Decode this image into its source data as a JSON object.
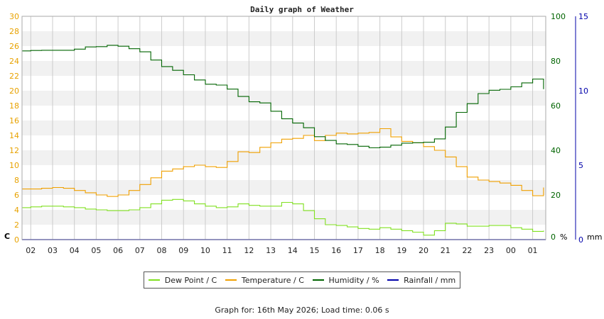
{
  "chart_data": {
    "type": "line",
    "title": "Daily graph of Weather",
    "x_ticks": [
      "02",
      "03",
      "04",
      "05",
      "06",
      "07",
      "08",
      "09",
      "10",
      "11",
      "12",
      "13",
      "14",
      "15",
      "16",
      "17",
      "18",
      "19",
      "20",
      "21",
      "22",
      "23",
      "00",
      "01"
    ],
    "x_range": [
      1.6,
      25.6
    ],
    "left_axis": {
      "ticks": [
        0,
        2,
        4,
        6,
        8,
        10,
        12,
        14,
        16,
        18,
        20,
        22,
        24,
        26,
        28,
        30
      ],
      "range": [
        0,
        30
      ],
      "color": "#e8a200",
      "unit": "C"
    },
    "right_axis_humidity": {
      "ticks": [
        0,
        20,
        40,
        60,
        80,
        100
      ],
      "range": [
        0,
        100
      ],
      "color": "#006400",
      "unit": "%"
    },
    "right_axis_rain": {
      "ticks": [
        0,
        5,
        10,
        15
      ],
      "range": [
        0,
        15
      ],
      "color": "#0000aa",
      "unit": "mm"
    },
    "grid": true,
    "legend_position": "bottom",
    "series": [
      {
        "name": "Dew Point / C",
        "color": "#80e020",
        "axis": "left",
        "x": [
          1.6,
          2,
          2.5,
          3,
          3.5,
          4,
          4.5,
          5,
          5.5,
          6,
          6.5,
          7,
          7.5,
          8,
          8.5,
          9,
          9.5,
          10,
          10.5,
          11,
          11.5,
          12,
          12.5,
          13,
          13.5,
          14,
          14.5,
          15,
          15.5,
          16,
          16.5,
          17,
          17.5,
          18,
          18.5,
          19,
          19.5,
          20,
          20.5,
          21,
          21.5,
          22,
          22.5,
          23,
          23.5,
          24,
          24.5,
          25,
          25.5
        ],
        "y": [
          4.3,
          4.4,
          4.5,
          4.5,
          4.4,
          4.3,
          4.1,
          4.0,
          3.9,
          3.9,
          4.0,
          4.3,
          4.8,
          5.3,
          5.4,
          5.2,
          4.8,
          4.5,
          4.3,
          4.4,
          4.8,
          4.6,
          4.5,
          4.5,
          5.0,
          4.8,
          3.9,
          2.8,
          2.0,
          1.9,
          1.7,
          1.5,
          1.4,
          1.6,
          1.4,
          1.2,
          1.0,
          0.6,
          1.2,
          2.2,
          2.1,
          1.8,
          1.8,
          1.9,
          1.9,
          1.6,
          1.4,
          1.1,
          1.2
        ]
      },
      {
        "name": "Temperature / C",
        "color": "#f0a000",
        "axis": "left",
        "x": [
          1.6,
          2,
          2.5,
          3,
          3.5,
          4,
          4.5,
          5,
          5.5,
          6,
          6.5,
          7,
          7.5,
          8,
          8.5,
          9,
          9.5,
          10,
          10.5,
          11,
          11.5,
          12,
          12.5,
          13,
          13.5,
          14,
          14.5,
          15,
          15.5,
          16,
          16.5,
          17,
          17.5,
          18,
          18.5,
          19,
          19.5,
          20,
          20.5,
          21,
          21.5,
          22,
          22.5,
          23,
          23.5,
          24,
          24.5,
          25,
          25.5
        ],
        "y": [
          6.8,
          6.8,
          6.9,
          7.0,
          6.9,
          6.6,
          6.3,
          6.0,
          5.8,
          6.0,
          6.6,
          7.4,
          8.3,
          9.2,
          9.5,
          9.8,
          10.0,
          9.8,
          9.7,
          10.5,
          11.8,
          11.7,
          12.4,
          13.0,
          13.5,
          13.6,
          14.0,
          13.3,
          14.0,
          14.3,
          14.2,
          14.3,
          14.4,
          14.9,
          13.8,
          13.2,
          13.0,
          12.5,
          12.0,
          11.1,
          9.8,
          8.4,
          8.0,
          7.8,
          7.6,
          7.3,
          6.6,
          5.9,
          7.0
        ]
      },
      {
        "name": "Humidity / %",
        "color": "#006400",
        "axis": "humidity",
        "x": [
          1.6,
          2,
          2.5,
          3,
          3.5,
          4,
          4.5,
          5,
          5.5,
          6,
          6.5,
          7,
          7.5,
          8,
          8.5,
          9,
          9.5,
          10,
          10.5,
          11,
          11.5,
          12,
          12.5,
          13,
          13.5,
          14,
          14.5,
          15,
          15.5,
          16,
          16.5,
          17,
          17.5,
          18,
          18.5,
          19,
          19.5,
          20,
          20.5,
          21,
          21.5,
          22,
          22.5,
          23,
          23.5,
          24,
          24.5,
          25,
          25.5
        ],
        "y": [
          84.5,
          84.7,
          84.8,
          84.8,
          84.8,
          85.3,
          86.3,
          86.4,
          87.0,
          86.6,
          85.5,
          84.1,
          80.4,
          77.5,
          75.8,
          73.8,
          71.5,
          69.6,
          69.2,
          67.4,
          64.1,
          61.7,
          61.2,
          57.5,
          54.1,
          52.2,
          50.1,
          46.1,
          44.4,
          42.9,
          42.6,
          41.8,
          41.1,
          41.4,
          42.3,
          43.2,
          43.4,
          43.6,
          45.1,
          50.4,
          57.0,
          60.9,
          65.4,
          66.9,
          67.3,
          68.4,
          70.2,
          71.9,
          67.4
        ]
      },
      {
        "name": "Rainfall / mm",
        "color": "#0000aa",
        "axis": "rain",
        "x": [
          1.6,
          25.6
        ],
        "y": [
          0,
          0
        ]
      }
    ]
  },
  "footer": "Graph for: 16th May 2026; Load time: 0.06 s",
  "colors": {
    "band": "#f1f1f1",
    "grid": "#cccccc",
    "frame": "#aaaaaa"
  }
}
